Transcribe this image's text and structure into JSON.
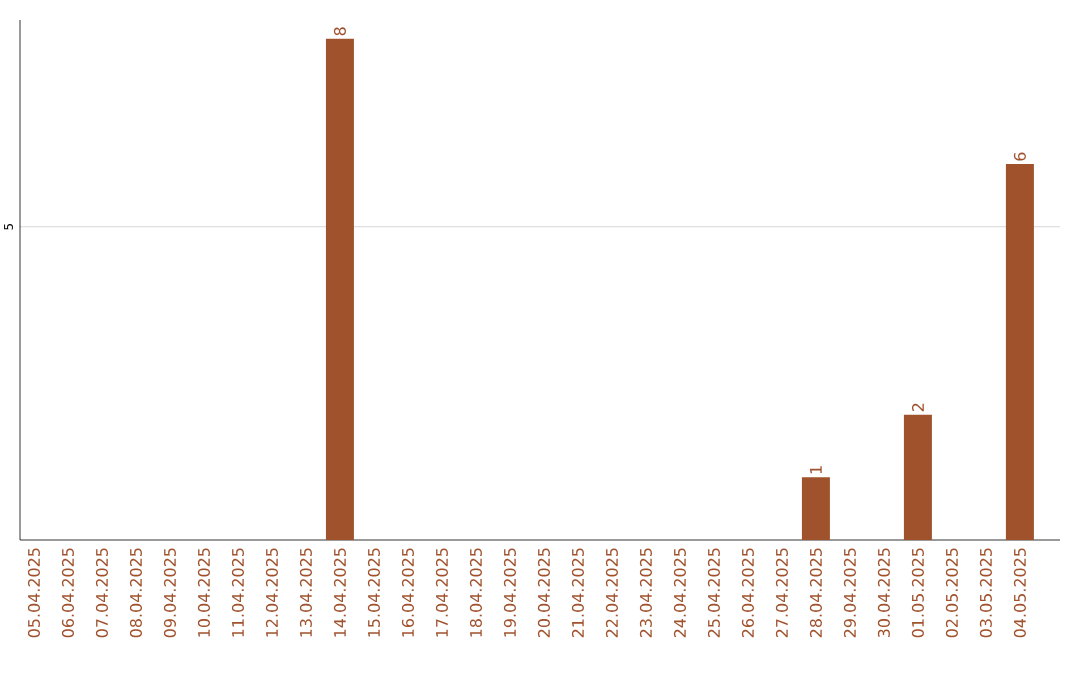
{
  "chart_data": {
    "type": "bar",
    "categories": [
      "05.04.2025",
      "06.04.2025",
      "07.04.2025",
      "08.04.2025",
      "09.04.2025",
      "10.04.2025",
      "11.04.2025",
      "12.04.2025",
      "13.04.2025",
      "14.04.2025",
      "15.04.2025",
      "16.04.2025",
      "17.04.2025",
      "18.04.2025",
      "19.04.2025",
      "20.04.2025",
      "21.04.2025",
      "22.04.2025",
      "23.04.2025",
      "24.04.2025",
      "25.04.2025",
      "26.04.2025",
      "27.04.2025",
      "28.04.2025",
      "29.04.2025",
      "30.04.2025",
      "01.05.2025",
      "02.05.2025",
      "03.05.2025",
      "04.05.2025"
    ],
    "values": [
      null,
      null,
      null,
      null,
      null,
      null,
      null,
      null,
      null,
      8,
      null,
      null,
      null,
      null,
      null,
      null,
      null,
      null,
      null,
      null,
      null,
      null,
      null,
      1,
      null,
      null,
      2,
      null,
      null,
      6
    ],
    "color": "#a0522d",
    "ylim": [
      0,
      8.3
    ],
    "yticks": [
      5
    ],
    "grid": "y",
    "data_labels": true
  }
}
